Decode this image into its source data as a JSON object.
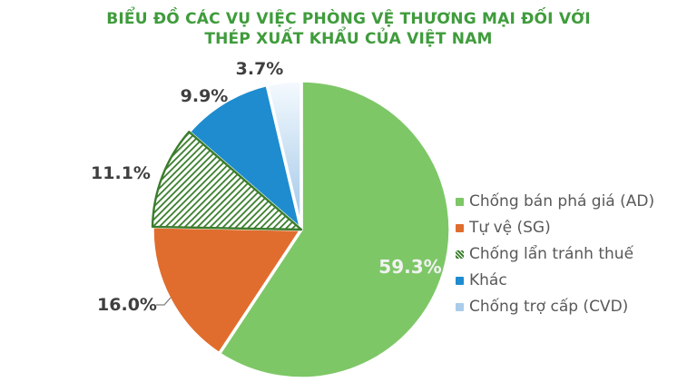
{
  "title": {
    "line1": "BIỂU ĐỒ CÁC VỤ VIỆC PHÒNG VỆ THƯƠNG MẠI ĐỐI VỚI",
    "line2": "THÉP XUẤT KHẨU CỦA VIỆT NAM",
    "color": "#3F9C3C"
  },
  "chart_data": {
    "type": "pie",
    "title": "BIỂU ĐỒ CÁC VỤ VIỆC PHÒNG VỆ THƯƠNG MẠI ĐỐI VỚI THÉP XUẤT KHẨU CỦA VIỆT NAM",
    "start_angle_deg": 0,
    "direction": "clockwise",
    "legend_position": "right",
    "background": "#FFFFFF",
    "inside_label_color": "#F2F2F2",
    "outside_label_color": "#3F3F3F",
    "legend_text_color": "#595959",
    "slice_gap_color": "#FFFFFF",
    "slices": [
      {
        "label": "Chống bán phá giá (AD)",
        "value": 59.3,
        "pct_label": "59.3%",
        "color": "#7DC767",
        "fill": "solid"
      },
      {
        "label": "Tự vệ (SG)",
        "value": 16.0,
        "pct_label": "16.0%",
        "color": "#E06D2E",
        "fill": "solid"
      },
      {
        "label": "Chống lẩn tránh thuế",
        "value": 11.1,
        "pct_label": "11.1%",
        "color": "#3A7D2C",
        "fill": "hatch",
        "hatch_bg": "#FFFFFF"
      },
      {
        "label": "Khác",
        "value": 9.9,
        "pct_label": "9.9%",
        "color": "#1E8CCF",
        "fill": "solid"
      },
      {
        "label": "Chống trợ cấp (CVD)",
        "value": 3.7,
        "pct_label": "3.7%",
        "color": "#A9CCEA",
        "fill": "gradient",
        "gradient_from": "#F5FAFE",
        "gradient_to": "#9FC6E8"
      }
    ]
  }
}
